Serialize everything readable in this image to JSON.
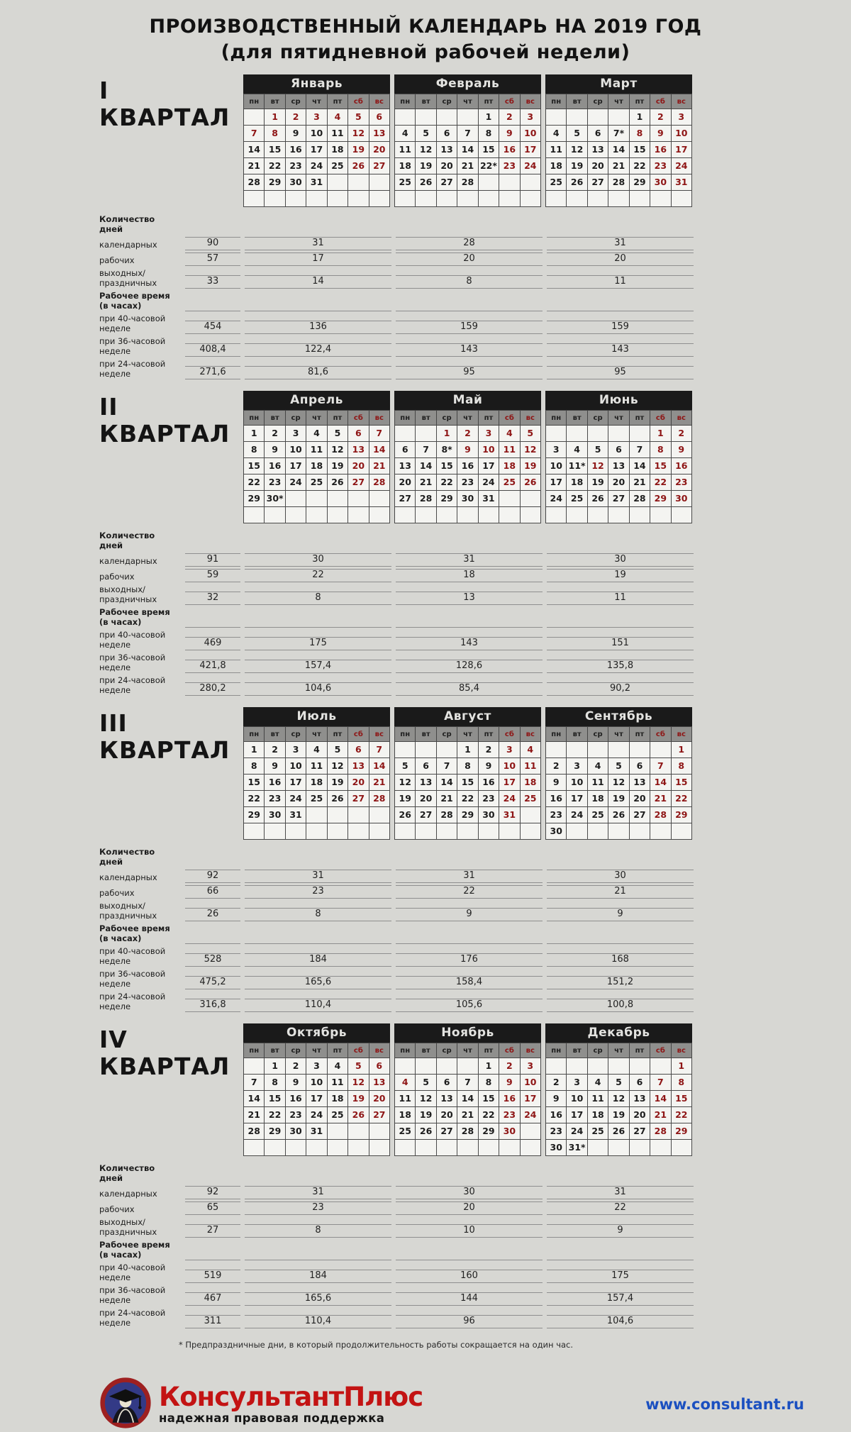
{
  "title": {
    "line1": "ПРОИЗВОДСТВЕННЫЙ КАЛЕНДАРЬ НА 2019 ГОД",
    "line2": "(для пятидневной рабочей недели)"
  },
  "day_headers": [
    {
      "label": "пн",
      "weekend": false
    },
    {
      "label": "вт",
      "weekend": false
    },
    {
      "label": "ср",
      "weekend": false
    },
    {
      "label": "чт",
      "weekend": false
    },
    {
      "label": "пт",
      "weekend": false
    },
    {
      "label": "сб",
      "weekend": true
    },
    {
      "label": "вс",
      "weekend": true
    }
  ],
  "stats_labels": {
    "days_header": "Количество дней",
    "calendar": "календарных",
    "work": "рабочих",
    "off": "выходных/праздничных",
    "hours_header": "Рабочее время (в часах)",
    "h40": "при 40-часовой неделе",
    "h36": "при 36-часовой неделе",
    "h24": "при 24-часовой неделе"
  },
  "quarters": [
    {
      "label_lines": [
        "I",
        "КВАРТАЛ"
      ],
      "months": [
        {
          "name": "Январь",
          "weeks": [
            [
              "",
              "1!",
              "2!",
              "3!",
              "4!",
              "5!",
              "6!"
            ],
            [
              "7!",
              "8!",
              "9",
              "10",
              "11",
              "12!",
              "13!"
            ],
            [
              "14",
              "15",
              "16",
              "17",
              "18",
              "19!",
              "20!"
            ],
            [
              "21",
              "22",
              "23",
              "24",
              "25",
              "26!",
              "27!"
            ],
            [
              "28",
              "29",
              "30",
              "31",
              "",
              "",
              ""
            ],
            [
              "",
              "",
              "",
              "",
              "",
              "",
              ""
            ]
          ]
        },
        {
          "name": "Февраль",
          "weeks": [
            [
              "",
              "",
              "",
              "",
              "1",
              "2!",
              "3!"
            ],
            [
              "4",
              "5",
              "6",
              "7",
              "8",
              "9!",
              "10!"
            ],
            [
              "11",
              "12",
              "13",
              "14",
              "15",
              "16!",
              "17!"
            ],
            [
              "18",
              "19",
              "20",
              "21",
              "22*",
              "23!",
              "24!"
            ],
            [
              "25",
              "26",
              "27",
              "28",
              "",
              "",
              ""
            ],
            [
              "",
              "",
              "",
              "",
              "",
              "",
              ""
            ]
          ]
        },
        {
          "name": "Март",
          "weeks": [
            [
              "",
              "",
              "",
              "",
              "1",
              "2!",
              "3!"
            ],
            [
              "4",
              "5",
              "6",
              "7*",
              "8!",
              "9!",
              "10!"
            ],
            [
              "11",
              "12",
              "13",
              "14",
              "15",
              "16!",
              "17!"
            ],
            [
              "18",
              "19",
              "20",
              "21",
              "22",
              "23!",
              "24!"
            ],
            [
              "25",
              "26",
              "27",
              "28",
              "29",
              "30!",
              "31!"
            ],
            [
              "",
              "",
              "",
              "",
              "",
              "",
              ""
            ]
          ]
        }
      ],
      "stats": {
        "calendar": [
          "90",
          "31",
          "28",
          "31"
        ],
        "work": [
          "57",
          "17",
          "20",
          "20"
        ],
        "off": [
          "33",
          "14",
          "8",
          "11"
        ],
        "h40": [
          "454",
          "136",
          "159",
          "159"
        ],
        "h36": [
          "408,4",
          "122,4",
          "143",
          "143"
        ],
        "h24": [
          "271,6",
          "81,6",
          "95",
          "95"
        ]
      }
    },
    {
      "label_lines": [
        "II",
        "КВАРТАЛ"
      ],
      "months": [
        {
          "name": "Апрель",
          "weeks": [
            [
              "1",
              "2",
              "3",
              "4",
              "5",
              "6!",
              "7!"
            ],
            [
              "8",
              "9",
              "10",
              "11",
              "12",
              "13!",
              "14!"
            ],
            [
              "15",
              "16",
              "17",
              "18",
              "19",
              "20!",
              "21!"
            ],
            [
              "22",
              "23",
              "24",
              "25",
              "26",
              "27!",
              "28!"
            ],
            [
              "29",
              "30*",
              "",
              "",
              "",
              "",
              ""
            ],
            [
              "",
              "",
              "",
              "",
              "",
              "",
              ""
            ]
          ]
        },
        {
          "name": "Май",
          "weeks": [
            [
              "",
              "",
              "1!",
              "2!",
              "3!",
              "4!",
              "5!"
            ],
            [
              "6",
              "7",
              "8*",
              "9!",
              "10!",
              "11!",
              "12!"
            ],
            [
              "13",
              "14",
              "15",
              "16",
              "17",
              "18!",
              "19!"
            ],
            [
              "20",
              "21",
              "22",
              "23",
              "24",
              "25!",
              "26!"
            ],
            [
              "27",
              "28",
              "29",
              "30",
              "31",
              "",
              ""
            ],
            [
              "",
              "",
              "",
              "",
              "",
              "",
              ""
            ]
          ]
        },
        {
          "name": "Июнь",
          "weeks": [
            [
              "",
              "",
              "",
              "",
              "",
              "1!",
              "2!"
            ],
            [
              "3",
              "4",
              "5",
              "6",
              "7",
              "8!",
              "9!"
            ],
            [
              "10",
              "11*",
              "12!",
              "13",
              "14",
              "15!",
              "16!"
            ],
            [
              "17",
              "18",
              "19",
              "20",
              "21",
              "22!",
              "23!"
            ],
            [
              "24",
              "25",
              "26",
              "27",
              "28",
              "29!",
              "30!"
            ],
            [
              "",
              "",
              "",
              "",
              "",
              "",
              ""
            ]
          ]
        }
      ],
      "stats": {
        "calendar": [
          "91",
          "30",
          "31",
          "30"
        ],
        "work": [
          "59",
          "22",
          "18",
          "19"
        ],
        "off": [
          "32",
          "8",
          "13",
          "11"
        ],
        "h40": [
          "469",
          "175",
          "143",
          "151"
        ],
        "h36": [
          "421,8",
          "157,4",
          "128,6",
          "135,8"
        ],
        "h24": [
          "280,2",
          "104,6",
          "85,4",
          "90,2"
        ]
      }
    },
    {
      "label_lines": [
        "III КВАРТАЛ"
      ],
      "months": [
        {
          "name": "Июль",
          "weeks": [
            [
              "1",
              "2",
              "3",
              "4",
              "5",
              "6!",
              "7!"
            ],
            [
              "8",
              "9",
              "10",
              "11",
              "12",
              "13!",
              "14!"
            ],
            [
              "15",
              "16",
              "17",
              "18",
              "19",
              "20!",
              "21!"
            ],
            [
              "22",
              "23",
              "24",
              "25",
              "26",
              "27!",
              "28!"
            ],
            [
              "29",
              "30",
              "31",
              "",
              "",
              "",
              ""
            ],
            [
              "",
              "",
              "",
              "",
              "",
              "",
              ""
            ]
          ]
        },
        {
          "name": "Август",
          "weeks": [
            [
              "",
              "",
              "",
              "1",
              "2",
              "3!",
              "4!"
            ],
            [
              "5",
              "6",
              "7",
              "8",
              "9",
              "10!",
              "11!"
            ],
            [
              "12",
              "13",
              "14",
              "15",
              "16",
              "17!",
              "18!"
            ],
            [
              "19",
              "20",
              "21",
              "22",
              "23",
              "24!",
              "25!"
            ],
            [
              "26",
              "27",
              "28",
              "29",
              "30",
              "31!",
              ""
            ],
            [
              "",
              "",
              "",
              "",
              "",
              "",
              ""
            ]
          ]
        },
        {
          "name": "Сентябрь",
          "weeks": [
            [
              "",
              "",
              "",
              "",
              "",
              "",
              "1!"
            ],
            [
              "2",
              "3",
              "4",
              "5",
              "6",
              "7!",
              "8!"
            ],
            [
              "9",
              "10",
              "11",
              "12",
              "13",
              "14!",
              "15!"
            ],
            [
              "16",
              "17",
              "18",
              "19",
              "20",
              "21!",
              "22!"
            ],
            [
              "23",
              "24",
              "25",
              "26",
              "27",
              "28!",
              "29!"
            ],
            [
              "30",
              "",
              "",
              "",
              "",
              "",
              ""
            ]
          ]
        }
      ],
      "stats": {
        "calendar": [
          "92",
          "31",
          "31",
          "30"
        ],
        "work": [
          "66",
          "23",
          "22",
          "21"
        ],
        "off": [
          "26",
          "8",
          "9",
          "9"
        ],
        "h40": [
          "528",
          "184",
          "176",
          "168"
        ],
        "h36": [
          "475,2",
          "165,6",
          "158,4",
          "151,2"
        ],
        "h24": [
          "316,8",
          "110,4",
          "105,6",
          "100,8"
        ]
      }
    },
    {
      "label_lines": [
        "IV КВАРТАЛ"
      ],
      "months": [
        {
          "name": "Октябрь",
          "weeks": [
            [
              "",
              "1",
              "2",
              "3",
              "4",
              "5!",
              "6!"
            ],
            [
              "7",
              "8",
              "9",
              "10",
              "11",
              "12!",
              "13!"
            ],
            [
              "14",
              "15",
              "16",
              "17",
              "18",
              "19!",
              "20!"
            ],
            [
              "21",
              "22",
              "23",
              "24",
              "25",
              "26!",
              "27!"
            ],
            [
              "28",
              "29",
              "30",
              "31",
              "",
              "",
              ""
            ],
            [
              "",
              "",
              "",
              "",
              "",
              "",
              ""
            ]
          ]
        },
        {
          "name": "Ноябрь",
          "weeks": [
            [
              "",
              "",
              "",
              "",
              "1",
              "2!",
              "3!"
            ],
            [
              "4!",
              "5",
              "6",
              "7",
              "8",
              "9!",
              "10!"
            ],
            [
              "11",
              "12",
              "13",
              "14",
              "15",
              "16!",
              "17!"
            ],
            [
              "18",
              "19",
              "20",
              "21",
              "22",
              "23!",
              "24!"
            ],
            [
              "25",
              "26",
              "27",
              "28",
              "29",
              "30!",
              ""
            ],
            [
              "",
              "",
              "",
              "",
              "",
              "",
              ""
            ]
          ]
        },
        {
          "name": "Декабрь",
          "weeks": [
            [
              "",
              "",
              "",
              "",
              "",
              "",
              "1!"
            ],
            [
              "2",
              "3",
              "4",
              "5",
              "6",
              "7!",
              "8!"
            ],
            [
              "9",
              "10",
              "11",
              "12",
              "13",
              "14!",
              "15!"
            ],
            [
              "16",
              "17",
              "18",
              "19",
              "20",
              "21!",
              "22!"
            ],
            [
              "23",
              "24",
              "25",
              "26",
              "27",
              "28!",
              "29!"
            ],
            [
              "30",
              "31*",
              "",
              "",
              "",
              "",
              ""
            ]
          ]
        }
      ],
      "stats": {
        "calendar": [
          "92",
          "31",
          "30",
          "31"
        ],
        "work": [
          "65",
          "23",
          "20",
          "22"
        ],
        "off": [
          "27",
          "8",
          "10",
          "9"
        ],
        "h40": [
          "519",
          "184",
          "160",
          "175"
        ],
        "h36": [
          "467",
          "165,6",
          "144",
          "157,4"
        ],
        "h24": [
          "311",
          "110,4",
          "96",
          "104,6"
        ]
      }
    }
  ],
  "footnote": "* Предпраздничные дни, в который продолжительность работы сокращается на один час.",
  "footer": {
    "logo_text": "КонсультантПлюс",
    "tagline": "надежная правовая поддержка",
    "url": "www.consultant.ru"
  },
  "colors": {
    "holiday_red": "#8e1515",
    "brand_red": "#c31313",
    "url_blue": "#1b50c0",
    "header_black": "#1a1a1a",
    "page_gray": "#d7d7d3"
  }
}
